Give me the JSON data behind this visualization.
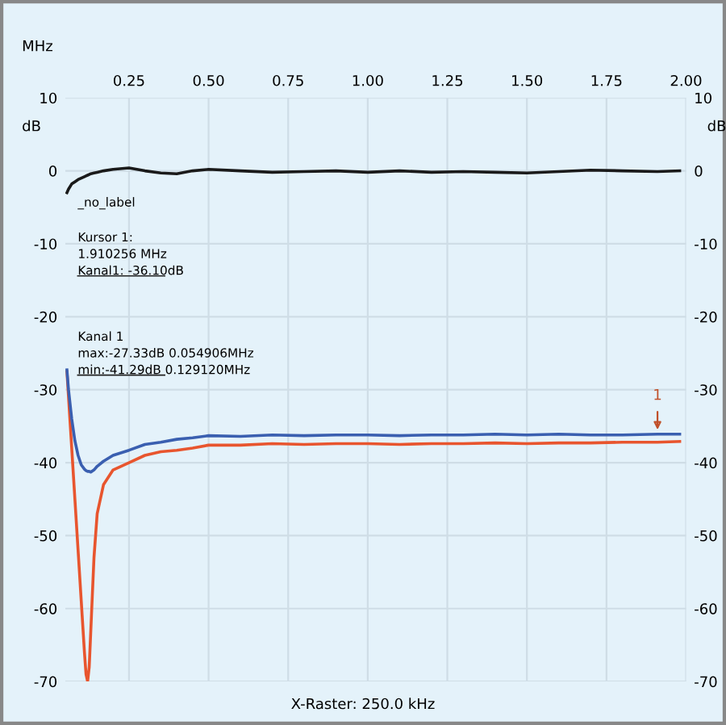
{
  "chart_data": {
    "type": "line",
    "xlabel": "MHz",
    "ylabel": "dB",
    "y2label": "dB",
    "x": [
      0.055,
      0.06,
      0.07,
      0.08,
      0.09,
      0.1,
      0.11,
      0.115,
      0.12,
      0.125,
      0.13,
      0.14,
      0.15,
      0.17,
      0.2,
      0.25,
      0.3,
      0.35,
      0.4,
      0.45,
      0.5,
      0.6,
      0.7,
      0.8,
      0.9,
      1.0,
      1.1,
      1.2,
      1.3,
      1.4,
      1.5,
      1.6,
      1.7,
      1.8,
      1.91,
      1.98
    ],
    "series": [
      {
        "color": "#1a1a1a",
        "values": [
          -3,
          -2.5,
          -1.8,
          -1.5,
          -1.2,
          -1,
          -0.8,
          -0.7,
          -0.6,
          -0.5,
          -0.4,
          -0.3,
          -0.2,
          0,
          0.2,
          0.4,
          0,
          -0.3,
          -0.4,
          0,
          0.2,
          0,
          -0.2,
          -0.1,
          0,
          -0.2,
          0,
          -0.2,
          -0.1,
          -0.2,
          -0.3,
          -0.1,
          0.1,
          0,
          -0.1,
          0
        ]
      },
      {
        "color": "#e8552e",
        "values": [
          -27.5,
          -31,
          -38,
          -45,
          -52,
          -59,
          -66,
          -69,
          -70,
          -68,
          -63,
          -53,
          -47,
          -43,
          -41,
          -40,
          -39,
          -38.5,
          -38.3,
          -38,
          -37.6,
          -37.6,
          -37.4,
          -37.5,
          -37.4,
          -37.4,
          -37.5,
          -37.4,
          -37.4,
          -37.3,
          -37.4,
          -37.3,
          -37.3,
          -37.2,
          -37.2,
          -37.1
        ]
      },
      {
        "color": "#3a5fb0",
        "values": [
          -27.3,
          -30,
          -34,
          -37,
          -39,
          -40.3,
          -40.9,
          -41.1,
          -41.2,
          -41.2,
          -41.3,
          -41,
          -40.5,
          -39.8,
          -39,
          -38.3,
          -37.5,
          -37.2,
          -36.8,
          -36.6,
          -36.3,
          -36.4,
          -36.2,
          -36.3,
          -36.2,
          -36.2,
          -36.3,
          -36.2,
          -36.2,
          -36.1,
          -36.2,
          -36.1,
          -36.2,
          -36.2,
          -36.1,
          -36.1
        ]
      }
    ],
    "xlim": [
      0.05,
      2.0
    ],
    "xticks": [
      0.25,
      {
        "value": 0.5,
        "label": "0.50"
      },
      0.75,
      {
        "value": 1.0,
        "label": "1.00"
      },
      1.25,
      {
        "value": 1.5,
        "label": "1.50"
      },
      1.75,
      {
        "value": 2.0,
        "label": "2.00"
      }
    ],
    "ylim": [
      -70,
      10
    ],
    "yticks": [
      10,
      0,
      -10,
      -20,
      -30,
      -40,
      -50,
      -60,
      -70
    ],
    "y2lim": [
      -70,
      10
    ],
    "y2ticks": [
      10,
      0,
      -10,
      -20,
      -30,
      -40,
      -50,
      -60,
      -70
    ],
    "grid": true,
    "legend": false,
    "marker": "none",
    "line_style": "solid",
    "annotations": [
      "_no_label",
      "Kursor 1:\n1.910256 MHz\nKanal1: -36.10dB",
      "Kanal 1\nmax:-27.33dB 0.054906MHz\nmin:-41.29dB 0.129120MHz",
      "X-Raster: 250.0 kHz",
      {
        "text": "1",
        "x": 1.910256,
        "y": -36.1
      }
    ]
  }
}
